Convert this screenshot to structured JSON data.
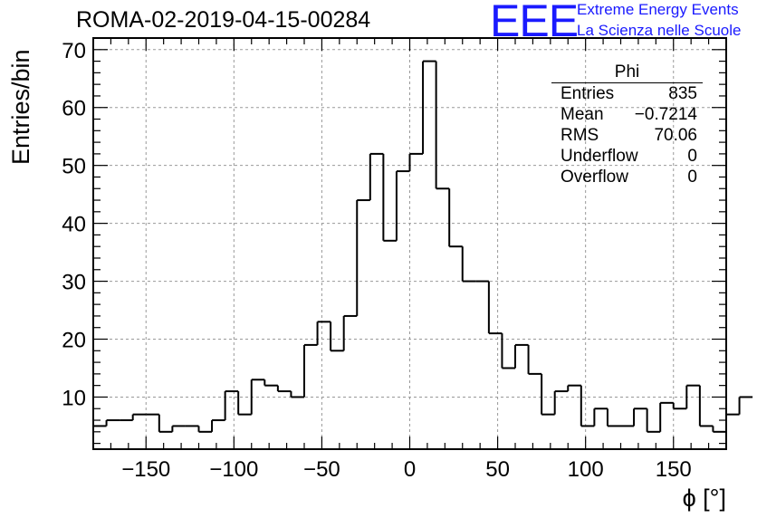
{
  "title": "ROMA-02-2019-04-15-00284",
  "logo": {
    "mark": "EEE",
    "line1": "Extreme Energy Events",
    "line2": "La Scienza nelle Scuole",
    "color": "#1a1aff"
  },
  "stats": {
    "name": "Phi",
    "rows": [
      {
        "label": "Entries",
        "value": "835"
      },
      {
        "label": "Mean",
        "value": "−0.7214"
      },
      {
        "label": "RMS",
        "value": "70.06"
      },
      {
        "label": "Underflow",
        "value": "0"
      },
      {
        "label": "Overflow",
        "value": "0"
      }
    ]
  },
  "chart_data": {
    "type": "bar",
    "style": "step-histogram",
    "title": "ROMA-02-2019-04-15-00284",
    "xlabel": "ϕ [°]",
    "ylabel": "Entries/bin",
    "xlim": [
      -180,
      180
    ],
    "ylim": [
      1,
      72
    ],
    "bin_edges_start": -180,
    "bin_width": 7.5,
    "values": [
      5,
      6,
      6,
      7,
      7,
      4,
      5,
      5,
      4,
      6,
      11,
      7,
      13,
      12,
      11,
      10,
      19,
      23,
      18,
      24,
      44,
      52,
      37,
      49,
      52,
      68,
      46,
      36,
      30,
      30,
      21,
      15,
      19,
      14,
      7,
      11,
      12,
      5,
      8,
      5,
      5,
      8,
      4,
      9,
      8,
      12,
      5,
      4,
      7,
      10
    ],
    "x_ticks": [
      -150,
      -100,
      -50,
      0,
      50,
      100,
      150
    ],
    "x_tick_labels": [
      "−150",
      "−100",
      "−50",
      "0",
      "50",
      "100",
      "150"
    ],
    "y_ticks": [
      10,
      20,
      30,
      40,
      50,
      60,
      70
    ],
    "y_tick_labels": [
      "10",
      "20",
      "30",
      "40",
      "50",
      "60",
      "70"
    ],
    "grid": true
  }
}
